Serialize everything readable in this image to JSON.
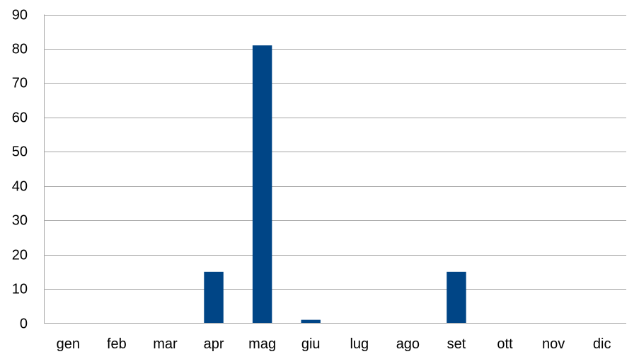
{
  "chart_data": {
    "type": "bar",
    "categories": [
      "gen",
      "feb",
      "mar",
      "apr",
      "mag",
      "giu",
      "lug",
      "ago",
      "set",
      "ott",
      "nov",
      "dic"
    ],
    "series": [
      {
        "values": [
          0,
          0,
          0,
          15,
          81,
          1,
          0,
          0,
          15,
          0,
          0,
          0
        ]
      }
    ],
    "title": "",
    "xlabel": "",
    "ylabel": "",
    "ylim": [
      0,
      90
    ],
    "yticks": [
      0,
      10,
      20,
      30,
      40,
      50,
      60,
      70,
      80,
      90
    ],
    "grid": true,
    "legend": "none",
    "colors": {
      "bar": "#004586",
      "grid": "#a6a6a6",
      "text": "#000000"
    }
  }
}
